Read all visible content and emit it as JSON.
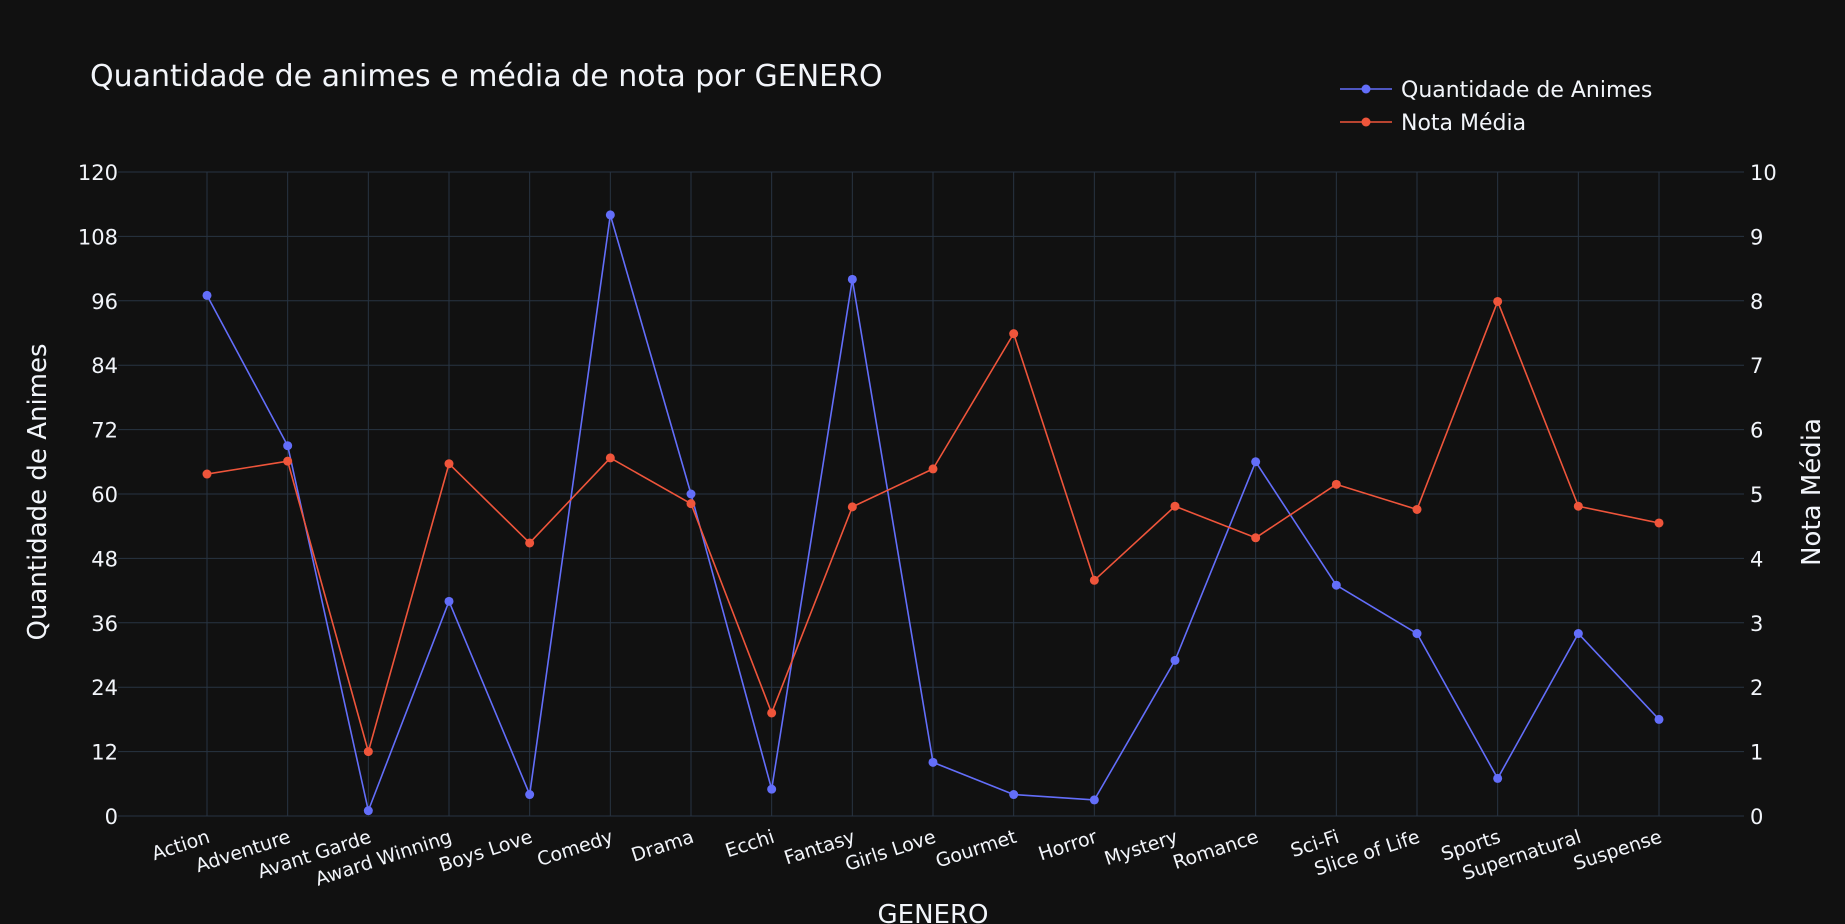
{
  "chart_data": {
    "type": "line",
    "title": "Quantidade de animes e média de nota por GENERO",
    "xlabel": "GENERO",
    "ylabel_left": "Quantidade de Animes",
    "ylabel_right": "Nota Média",
    "categories": [
      "Action",
      "Adventure",
      "Avant Garde",
      "Award Winning",
      "Boys Love",
      "Comedy",
      "Drama",
      "Ecchi",
      "Fantasy",
      "Girls Love",
      "Gourmet",
      "Horror",
      "Mystery",
      "Romance",
      "Sci-Fi",
      "Slice of Life",
      "Sports",
      "Supernatural",
      "Suspense"
    ],
    "left_axis": {
      "range": [
        0,
        120
      ],
      "ticks": [
        "0",
        "12",
        "24",
        "36",
        "48",
        "60",
        "72",
        "84",
        "96",
        "108",
        "120"
      ]
    },
    "right_axis": {
      "range": [
        0,
        10
      ],
      "ticks": [
        "0",
        "1",
        "2",
        "3",
        "4",
        "5",
        "6",
        "7",
        "8",
        "9",
        "10"
      ]
    },
    "legend_position": "top-right",
    "grid": true,
    "series": [
      {
        "name": "Quantidade de Animes",
        "axis": "left",
        "color": "#636efa",
        "values": [
          97,
          69,
          1,
          40,
          4,
          112,
          60,
          5,
          100,
          10,
          4,
          3,
          29,
          66,
          43,
          34,
          7,
          34,
          18
        ]
      },
      {
        "name": "Nota Média",
        "axis": "right",
        "color": "#ef553b",
        "values": [
          5.31,
          5.51,
          1.0,
          5.47,
          4.24,
          5.56,
          4.85,
          1.6,
          4.8,
          5.39,
          7.49,
          3.66,
          4.81,
          4.32,
          5.15,
          4.76,
          7.99,
          4.81,
          4.55
        ]
      }
    ]
  }
}
